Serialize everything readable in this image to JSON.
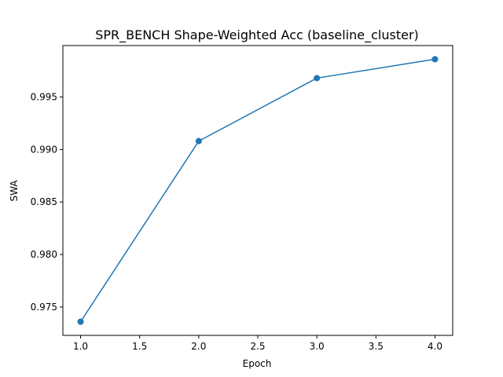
{
  "chart_data": {
    "type": "line",
    "title": "SPR_BENCH Shape-Weighted Acc (baseline_cluster)",
    "xlabel": "Epoch",
    "ylabel": "SWA",
    "x": [
      1.0,
      2.0,
      3.0,
      4.0
    ],
    "series": [
      {
        "values": [
          0.9736,
          0.9908,
          0.9968,
          0.9986
        ]
      }
    ],
    "xlim": [
      0.85,
      4.15
    ],
    "ylim": [
      0.9723,
      0.9999
    ],
    "xticks": [
      1.0,
      1.5,
      2.0,
      2.5,
      3.0,
      3.5,
      4.0
    ],
    "xtick_labels": [
      "1.0",
      "1.5",
      "2.0",
      "2.5",
      "3.0",
      "3.5",
      "4.0"
    ],
    "yticks": [
      0.975,
      0.98,
      0.985,
      0.99,
      0.995
    ],
    "ytick_labels": [
      "0.975",
      "0.980",
      "0.985",
      "0.990",
      "0.995"
    ],
    "grid": false,
    "line_color": "#1f77b4",
    "marker": "circle"
  }
}
